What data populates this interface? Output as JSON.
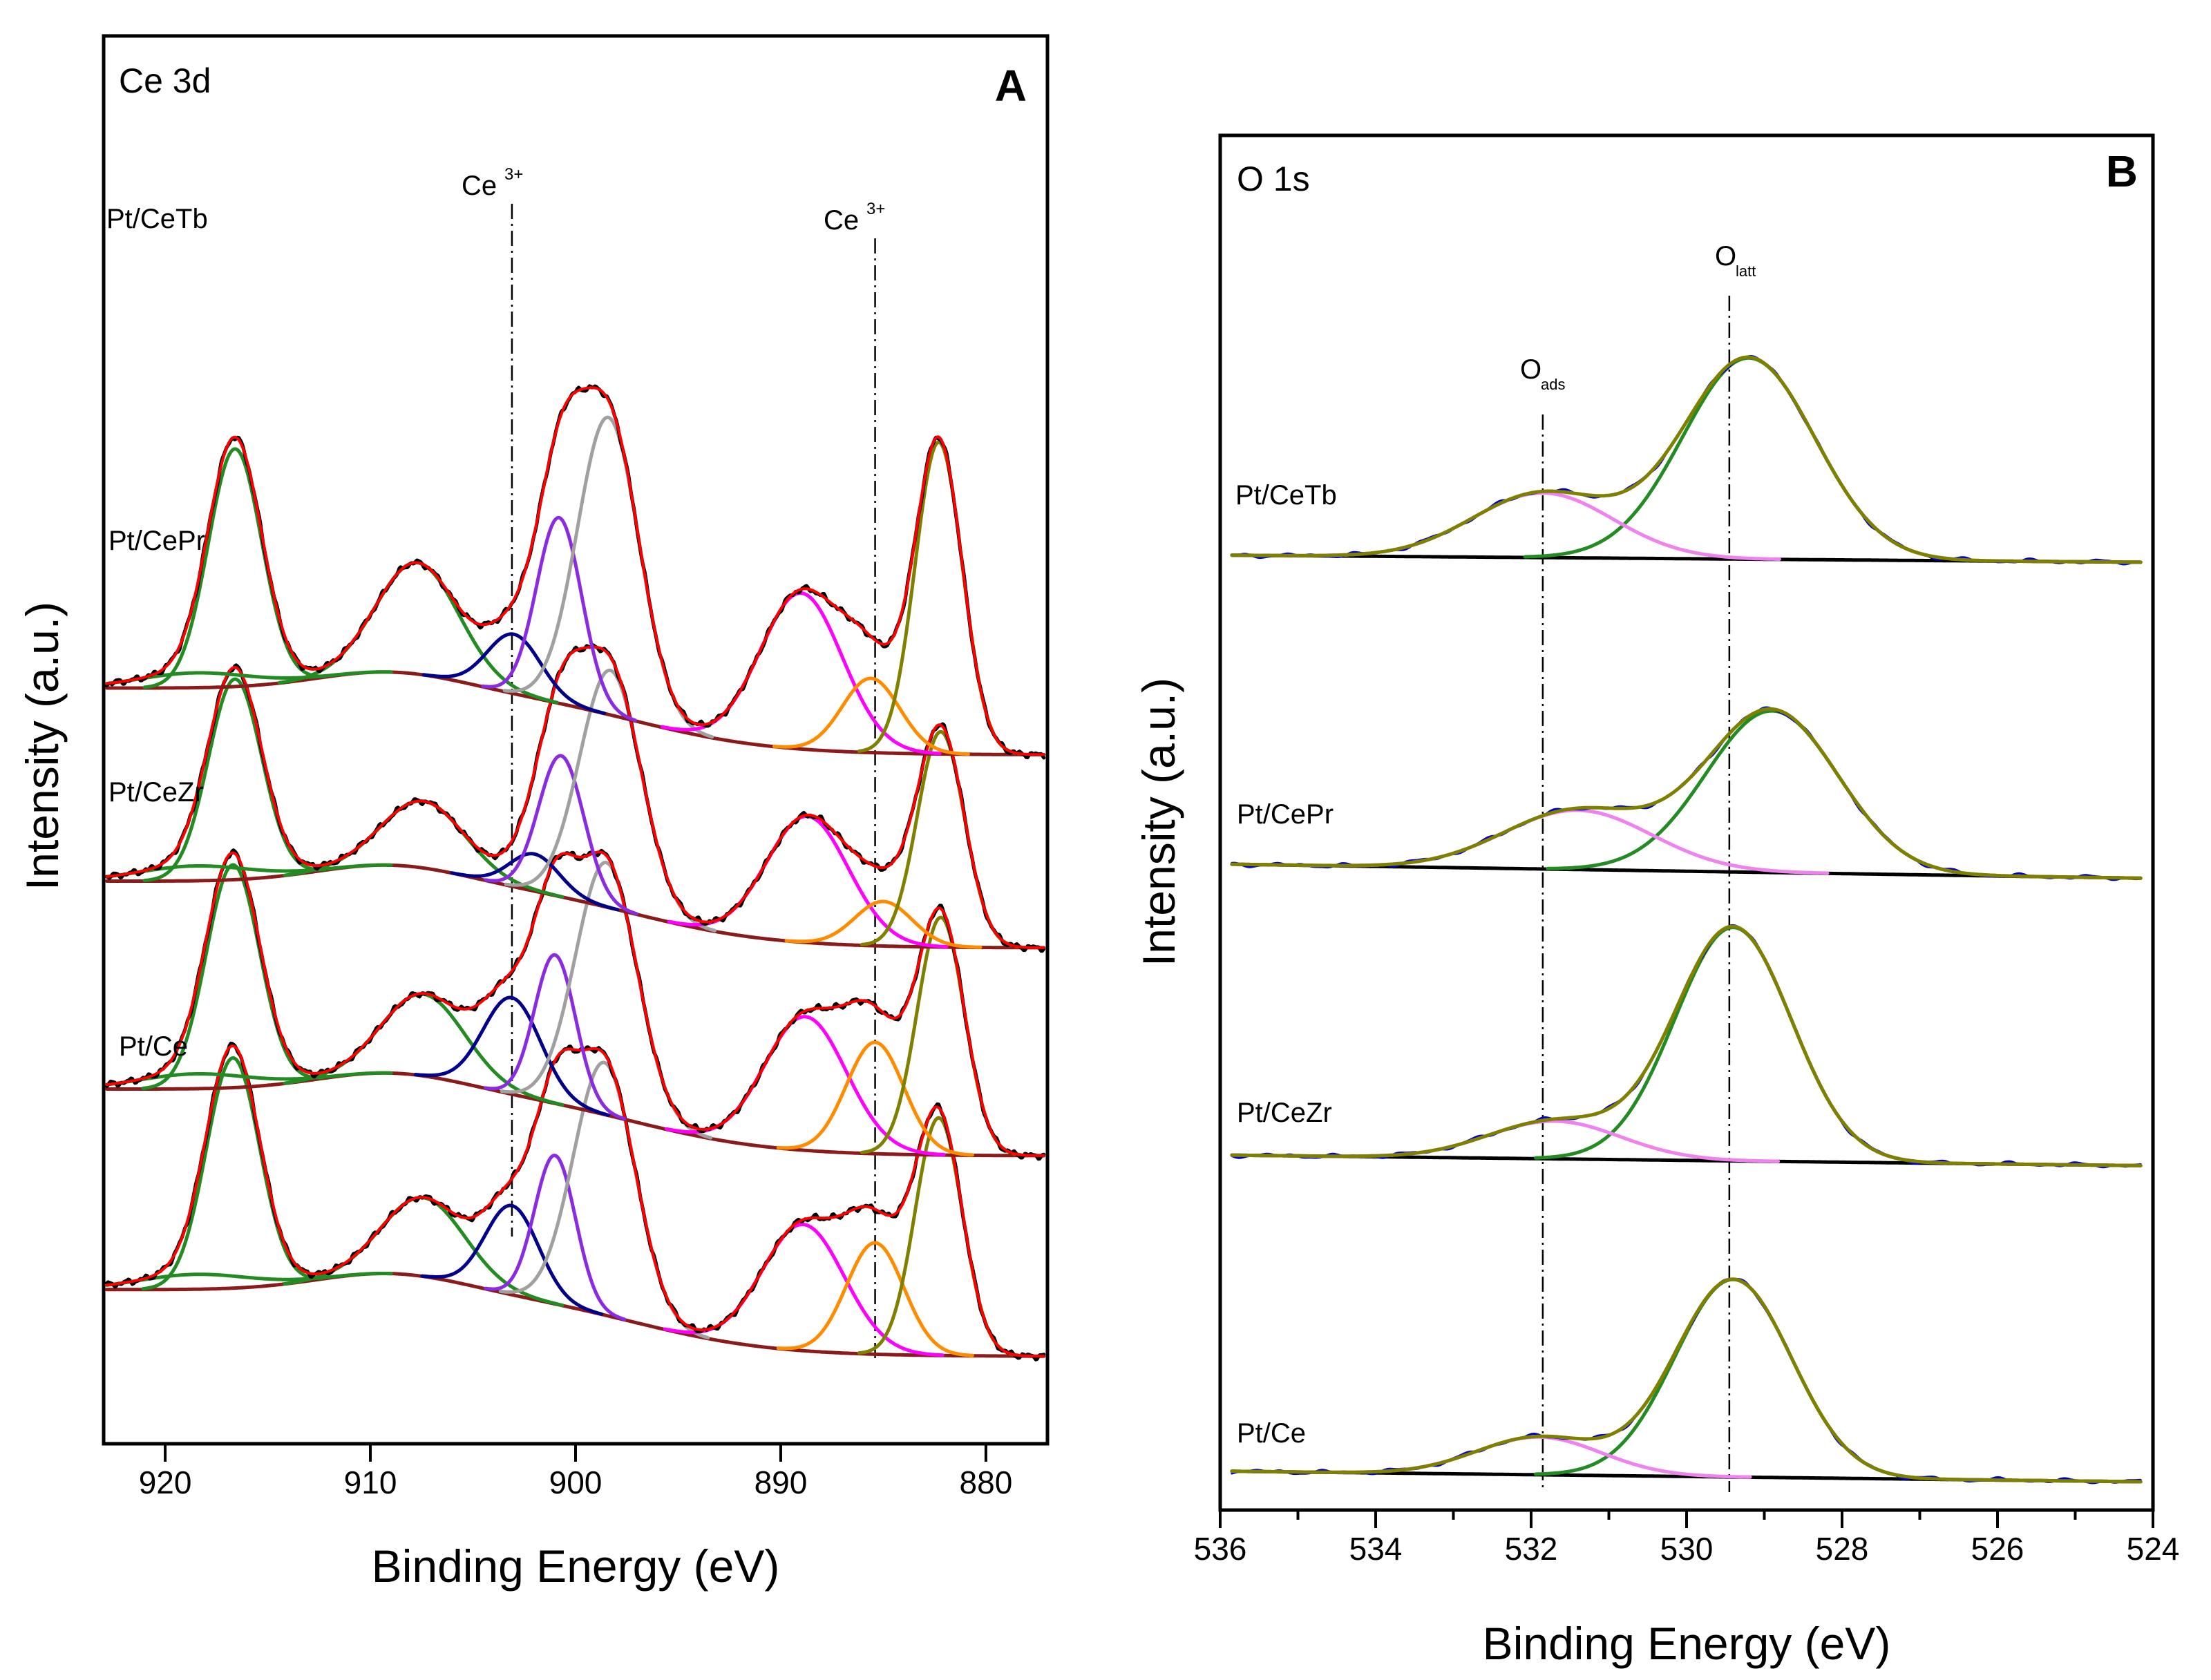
{
  "chart_data": [
    {
      "type": "line",
      "subtype": "xps-spectra-stacked",
      "panel_label": "A",
      "title": "Ce 3d",
      "xlabel": "Binding Energy (eV)",
      "ylabel": "Intensity (a.u.)",
      "xlim": [
        923,
        877
      ],
      "x_ticks": [
        920,
        910,
        900,
        890,
        880
      ],
      "x_tick_labels": [
        "920",
        "910",
        "900",
        "890",
        "880"
      ],
      "y_ticks": false,
      "reference_lines": [
        {
          "x": 903.1,
          "label": "Ce",
          "label_sup": "3+"
        },
        {
          "x": 885.4,
          "label": "Ce",
          "label_sup": "3+"
        }
      ],
      "offsets": [
        0,
        1.35,
        2.75,
        4.05
      ],
      "colors": {
        "raw": "#000000",
        "envelope": "#ff0000",
        "background": "#8b1a1a",
        "u_high": "#228b22",
        "v_high": "#ff00ff",
        "u_mid": "#a0a0a0",
        "v_mid": "#808000",
        "u_iii": "#00008b",
        "v_iii": "#ff8c00",
        "u_mid2": "#8a2be2"
      },
      "series": [
        {
          "name": "Pt/Ce",
          "background": {
            "high": 0.55,
            "low": 0.1,
            "step_center": 897,
            "step_width": 3.4,
            "hump_center": 909,
            "hump_height": 0.12
          },
          "peaks": [
            {
              "c": 916.7,
              "a": 1.55,
              "w": 1.3,
              "color_key": "u_high"
            },
            {
              "c": 918.5,
              "a": 0.1,
              "w": 2.8,
              "color_key": "u_high"
            },
            {
              "c": 907.4,
              "a": 0.53,
              "w": 2.0,
              "color_key": "u_high"
            },
            {
              "c": 903.1,
              "a": 0.6,
              "w": 1.3,
              "color_key": "u_iii"
            },
            {
              "c": 901.0,
              "a": 1.0,
              "w": 1.0,
              "color_key": "u_mid2"
            },
            {
              "c": 898.6,
              "a": 1.7,
              "w": 1.5,
              "color_key": "u_mid"
            },
            {
              "c": 888.9,
              "a": 0.85,
              "w": 2.0,
              "color_key": "v_high"
            },
            {
              "c": 885.4,
              "a": 0.75,
              "w": 1.4,
              "color_key": "v_iii"
            },
            {
              "c": 882.3,
              "a": 1.6,
              "w": 1.15,
              "color_key": "v_mid"
            }
          ]
        },
        {
          "name": "Pt/CeZr",
          "background": {
            "high": 0.55,
            "low": 0.1,
            "step_center": 897,
            "step_width": 3.4,
            "hump_center": 909,
            "hump_height": 0.12
          },
          "peaks": [
            {
              "c": 916.7,
              "a": 1.5,
              "w": 1.3,
              "color_key": "u_high"
            },
            {
              "c": 918.5,
              "a": 0.1,
              "w": 2.8,
              "color_key": "u_high"
            },
            {
              "c": 907.4,
              "a": 0.55,
              "w": 2.0,
              "color_key": "u_high"
            },
            {
              "c": 903.1,
              "a": 0.65,
              "w": 1.4,
              "color_key": "u_iii"
            },
            {
              "c": 901.0,
              "a": 1.0,
              "w": 1.0,
              "color_key": "u_mid2"
            },
            {
              "c": 898.5,
              "a": 1.7,
              "w": 1.5,
              "color_key": "u_mid"
            },
            {
              "c": 888.8,
              "a": 0.9,
              "w": 2.0,
              "color_key": "v_high"
            },
            {
              "c": 885.4,
              "a": 0.75,
              "w": 1.4,
              "color_key": "v_iii"
            },
            {
              "c": 882.2,
              "a": 1.6,
              "w": 1.15,
              "color_key": "v_mid"
            }
          ]
        },
        {
          "name": "Pt/CePr",
          "background": {
            "high": 0.55,
            "low": 0.1,
            "step_center": 897,
            "step_width": 3.4,
            "hump_center": 909,
            "hump_height": 0.12
          },
          "peaks": [
            {
              "c": 916.6,
              "a": 1.35,
              "w": 1.3,
              "color_key": "u_high"
            },
            {
              "c": 918.5,
              "a": 0.1,
              "w": 2.8,
              "color_key": "u_high"
            },
            {
              "c": 907.4,
              "a": 0.45,
              "w": 2.0,
              "color_key": "u_high"
            },
            {
              "c": 902.0,
              "a": 0.25,
              "w": 1.2,
              "color_key": "u_iii"
            },
            {
              "c": 900.7,
              "a": 0.95,
              "w": 1.1,
              "color_key": "u_mid2"
            },
            {
              "c": 898.3,
              "a": 1.6,
              "w": 1.5,
              "color_key": "u_mid"
            },
            {
              "c": 888.7,
              "a": 0.85,
              "w": 2.0,
              "color_key": "v_high"
            },
            {
              "c": 885.0,
              "a": 0.3,
              "w": 1.4,
              "color_key": "v_iii"
            },
            {
              "c": 882.2,
              "a": 1.45,
              "w": 1.15,
              "color_key": "v_mid"
            }
          ]
        },
        {
          "name": "Pt/CeTb",
          "background": {
            "high": 0.55,
            "low": 0.1,
            "step_center": 897,
            "step_width": 3.4,
            "hump_center": 909,
            "hump_height": 0.12
          },
          "peaks": [
            {
              "c": 916.6,
              "a": 1.6,
              "w": 1.3,
              "color_key": "u_high"
            },
            {
              "c": 918.5,
              "a": 0.1,
              "w": 2.8,
              "color_key": "u_high"
            },
            {
              "c": 907.7,
              "a": 0.75,
              "w": 2.0,
              "color_key": "u_high"
            },
            {
              "c": 903.0,
              "a": 0.4,
              "w": 1.3,
              "color_key": "u_iii"
            },
            {
              "c": 900.8,
              "a": 1.25,
              "w": 1.1,
              "color_key": "u_mid2"
            },
            {
              "c": 898.4,
              "a": 2.0,
              "w": 1.5,
              "color_key": "u_mid"
            },
            {
              "c": 889.0,
              "a": 1.05,
              "w": 2.0,
              "color_key": "v_high"
            },
            {
              "c": 885.6,
              "a": 0.5,
              "w": 1.4,
              "color_key": "v_iii"
            },
            {
              "c": 882.3,
              "a": 2.1,
              "w": 1.15,
              "color_key": "v_mid"
            }
          ]
        }
      ]
    },
    {
      "type": "line",
      "subtype": "xps-spectra-stacked",
      "panel_label": "B",
      "title": "O 1s",
      "xlabel": "Binding Energy (eV)",
      "ylabel": "Intensity (a.u.)",
      "xlim": [
        536,
        524
      ],
      "x_ticks": [
        536,
        534,
        532,
        530,
        528,
        526,
        524
      ],
      "x_tick_labels": [
        "536",
        "534",
        "532",
        "530",
        "528",
        "526",
        "524"
      ],
      "y_ticks": false,
      "reference_lines": [
        {
          "x": 531.85,
          "label": "O",
          "label_sub": "ads"
        },
        {
          "x": 529.45,
          "label": "O",
          "label_sub": "latt"
        }
      ],
      "offsets": [
        0,
        0.88,
        1.68,
        2.55
      ],
      "colors": {
        "raw": "#0000cd",
        "envelope": "#808000",
        "background": "#000000",
        "o_latt": "#228b22",
        "o_ads": "#ee82ee"
      },
      "series": [
        {
          "name": "Pt/Ce",
          "background": {
            "start": 0.02,
            "end": -0.01
          },
          "peaks": [
            {
              "c": 529.4,
              "a": 0.55,
              "w": 0.75,
              "color_key": "o_latt"
            },
            {
              "c": 531.9,
              "a": 0.105,
              "w": 0.8,
              "color_key": "o_ads"
            }
          ]
        },
        {
          "name": "Pt/CeZr",
          "background": {
            "start": 0.02,
            "end": -0.01
          },
          "peaks": [
            {
              "c": 529.4,
              "a": 0.65,
              "w": 0.75,
              "color_key": "o_latt"
            },
            {
              "c": 531.7,
              "a": 0.105,
              "w": 0.85,
              "color_key": "o_ads"
            }
          ]
        },
        {
          "name": "Pt/CePr",
          "background": {
            "start": 0.03,
            "end": -0.01
          },
          "peaks": [
            {
              "c": 528.9,
              "a": 0.45,
              "w": 0.85,
              "color_key": "o_latt"
            },
            {
              "c": 531.4,
              "a": 0.165,
              "w": 0.95,
              "color_key": "o_ads"
            }
          ]
        },
        {
          "name": "Pt/CeTb",
          "background": {
            "start": 0.02,
            "end": 0.0
          },
          "peaks": [
            {
              "c": 529.2,
              "a": 0.56,
              "w": 0.85,
              "color_key": "o_latt"
            },
            {
              "c": 531.85,
              "a": 0.18,
              "w": 0.9,
              "color_key": "o_ads"
            }
          ]
        }
      ]
    }
  ]
}
